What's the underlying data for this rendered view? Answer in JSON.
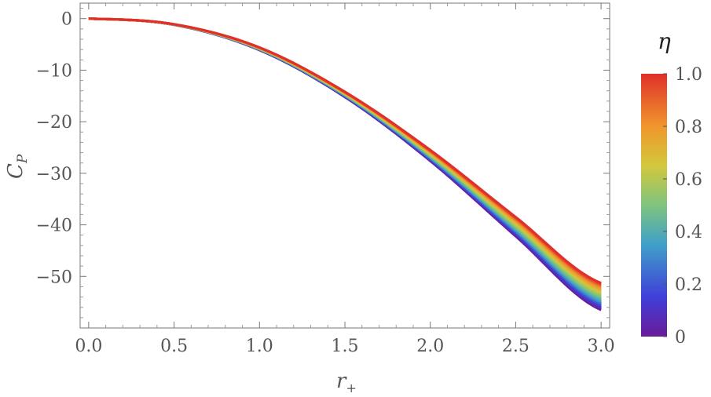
{
  "chart_data": {
    "type": "line",
    "xlabel": "r",
    "xlabel_sub": "+",
    "ylabel": "C",
    "ylabel_sub": "P",
    "xlim": [
      -0.05,
      3.05
    ],
    "ylim": [
      -60,
      3
    ],
    "x_ticks": [
      0.0,
      0.5,
      1.0,
      1.5,
      2.0,
      2.5,
      3.0
    ],
    "x_tick_labels": [
      "0.0",
      "0.5",
      "1.0",
      "1.5",
      "2.0",
      "2.5",
      "3.0"
    ],
    "y_ticks": [
      0,
      -10,
      -20,
      -30,
      -40,
      -50
    ],
    "y_tick_labels": [
      "0",
      "−10",
      "−20",
      "−30",
      "−40",
      "−50"
    ],
    "grid": false,
    "x": [
      0.0,
      0.5,
      1.0,
      1.5,
      2.0,
      2.5,
      3.0
    ],
    "family_parameter": "η",
    "series": [
      {
        "eta": 0.0,
        "values": [
          0,
          -1.2,
          -6.1,
          -15.2,
          -27.6,
          -42.2,
          -56.5
        ]
      },
      {
        "eta": 1.0,
        "values": [
          0,
          -1.1,
          -5.6,
          -14.2,
          -25.5,
          -38.5,
          -51.3
        ]
      }
    ],
    "colorbar": {
      "title": "η",
      "range": [
        0,
        1
      ],
      "ticks": [
        0,
        0.2,
        0.4,
        0.6,
        0.8,
        1.0
      ],
      "tick_labels": [
        "0",
        "0.2",
        "0.4",
        "0.6",
        "0.8",
        "1.0"
      ],
      "colors": [
        "#6a1b9a",
        "#3f3fd8",
        "#3fa0c8",
        "#7fc47f",
        "#d2c83c",
        "#f0962d",
        "#e0302a"
      ]
    }
  }
}
